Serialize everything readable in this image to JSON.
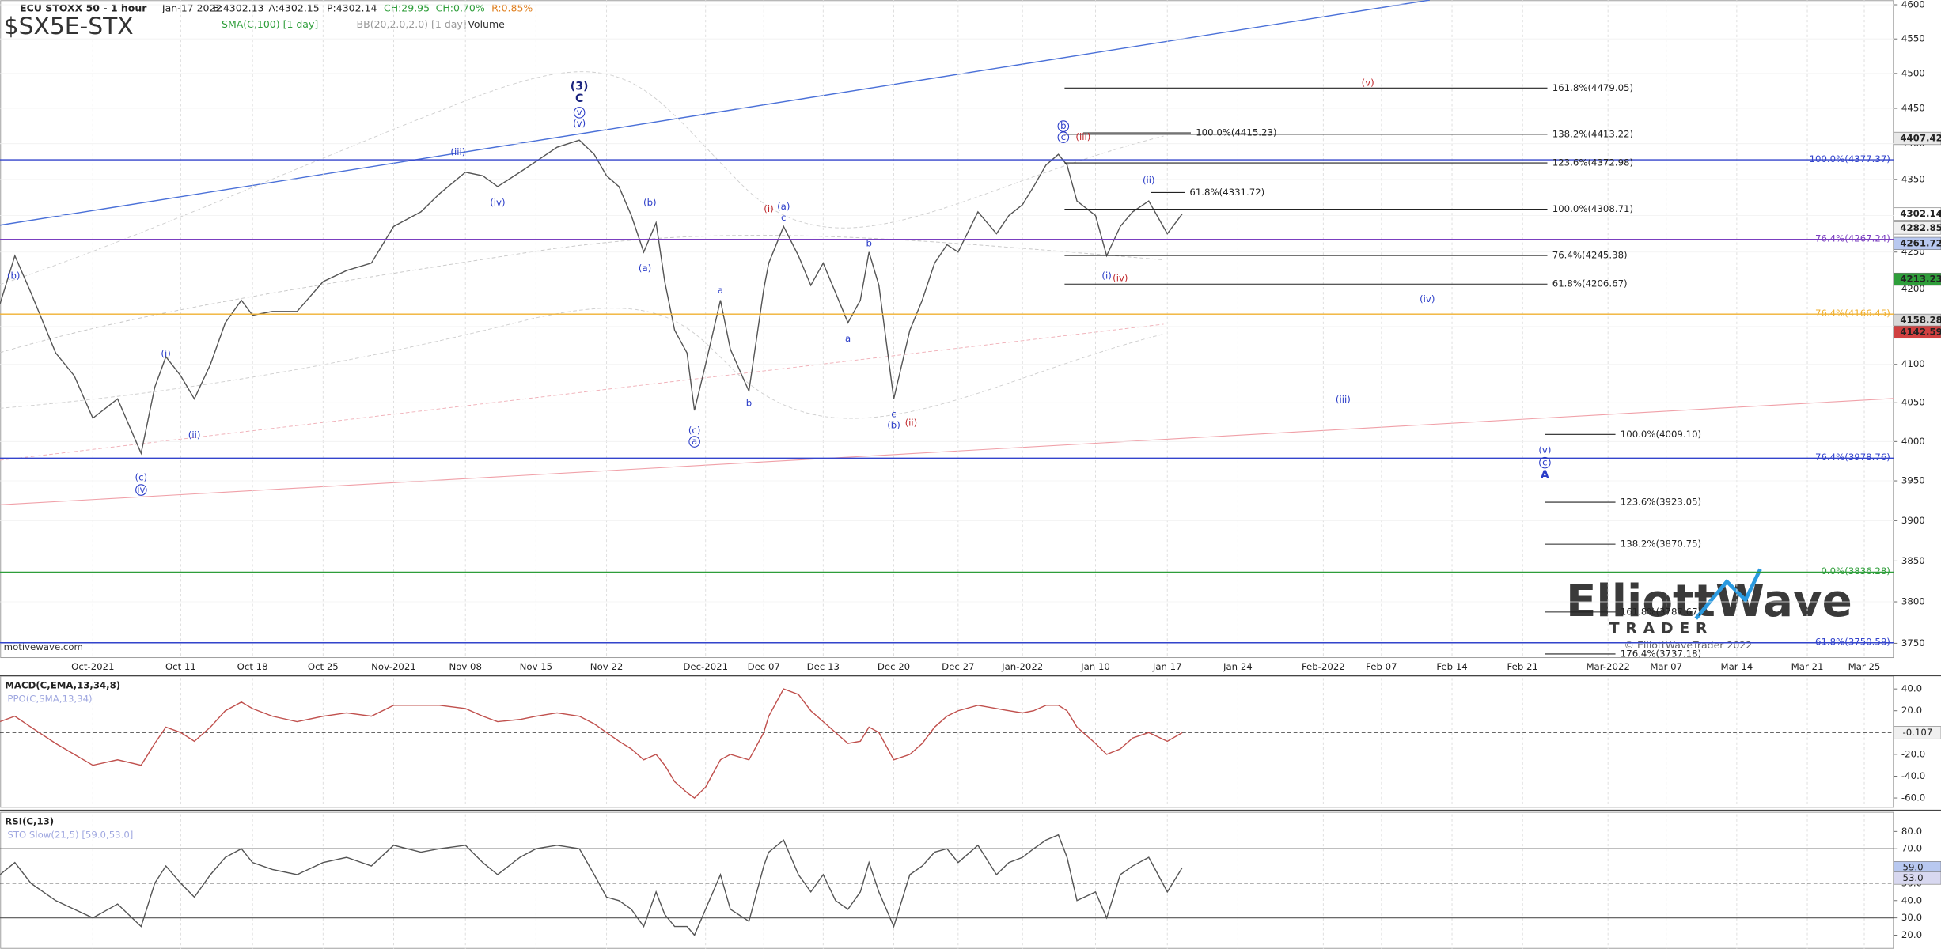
{
  "header": {
    "title": "ECU STOXX 50 - 1 hour",
    "date": "Jan-17 2022",
    "bid": "B:4302.13",
    "ask": "A:4302.15",
    "price": "P:4302.14",
    "change": "CH:29.95",
    "change_pct": "CH:0.70%",
    "range": "R:0.85%",
    "symbol": "$SX5E-STX",
    "studies": [
      "SMA(C,100) [1 day]",
      "BB(20,2.0,2.0) [1 day]",
      "Volume"
    ]
  },
  "footer": {
    "site": "motivewave.com"
  },
  "logo": {
    "name": "ElliottWave",
    "tagline": "TRADER",
    "copyright": "© ElliottWaveTrader 2022"
  },
  "chart_data": [
    {
      "type": "line",
      "log_scale": true,
      "grid": true,
      "color": "#555555",
      "categories": [
        null,
        null,
        null,
        null,
        null,
        "Oct-2021",
        null,
        null,
        null,
        null,
        "Oct 11",
        null,
        null,
        null,
        null,
        "Oct 18",
        null,
        null,
        "Oct 25",
        null,
        null,
        "Nov-2021",
        null,
        null,
        "Nov 08",
        null,
        null,
        null,
        "Nov 15",
        null,
        null,
        null,
        "Nov 22",
        null,
        null,
        null,
        null,
        null,
        null,
        null,
        null,
        "Dec-2021",
        null,
        null,
        null,
        "Dec 07",
        null,
        null,
        null,
        null,
        "Dec 13",
        null,
        null,
        null,
        null,
        null,
        "Dec 20",
        null,
        null,
        null,
        null,
        "Dec 27",
        null,
        null,
        null,
        "Jan-2022",
        null,
        null,
        null,
        null,
        null,
        "Jan 10",
        null,
        null,
        null,
        null,
        "Jan 17",
        null,
        "Jan 24",
        "Feb-2022",
        "Feb 07",
        "Feb 14",
        "Feb 21",
        "Mar-2022",
        "Mar 07",
        "Mar 14",
        "Mar 21",
        "Mar 25"
      ],
      "values": [
        4180,
        4245,
        4195,
        4115,
        4085,
        4030,
        4055,
        3985,
        4070,
        4110,
        4085,
        4055,
        4100,
        4155,
        4185,
        4165,
        4170,
        4170,
        4210,
        4225,
        4235,
        4285,
        4305,
        4330,
        4360,
        4355,
        4340,
        4360,
        4375,
        4395,
        4405,
        4385,
        4355,
        4340,
        4300,
        4250,
        4290,
        4210,
        4145,
        4115,
        4040,
        4100,
        4185,
        4120,
        4065,
        4200,
        4235,
        4285,
        4245,
        4205,
        4235,
        4195,
        4155,
        4185,
        4250,
        4205,
        4055,
        4145,
        4185,
        4235,
        4260,
        4250,
        4305,
        4275,
        4300,
        4315,
        4340,
        4370,
        4385,
        4370,
        4320,
        4300,
        4245,
        4285,
        4305,
        4320,
        4275,
        4302.14,
        null,
        null,
        null,
        null,
        null,
        null,
        null,
        null,
        null,
        null
      ],
      "ylim": [
        3735,
        4607
      ],
      "yticks": [
        3750,
        3800,
        3850,
        3900,
        3950,
        4000,
        4050,
        4100,
        4150,
        4200,
        4250,
        4300,
        4350,
        4400,
        4450,
        4500,
        4550,
        4600
      ],
      "price_markers": [
        {
          "value": 4407.42,
          "color": "#e8e8e8"
        },
        {
          "value": 4302.14,
          "color": "#ffffff"
        },
        {
          "value": 4282.85,
          "color": "#f0f0f0"
        },
        {
          "value": 4261.72,
          "color": "#b8c8f0"
        },
        {
          "value": 4213.23,
          "color": "#2e9e3a"
        },
        {
          "value": 4158.28,
          "color": "#d8d8d8"
        },
        {
          "value": 4142.59,
          "color": "#d04040"
        }
      ],
      "levels": [
        {
          "value": 4377.37,
          "label": "100.0%(4377.37)",
          "color": "#3344cc"
        },
        {
          "value": 4267.24,
          "label": "76.4%(4267.24)",
          "color": "#7b3fc0"
        },
        {
          "value": 4166.45,
          "label": "76.4%(4166.45)",
          "color": "#f0b030"
        },
        {
          "value": 3978.76,
          "label": "76.4%(3978.76)",
          "color": "#3344cc"
        },
        {
          "value": 3836.28,
          "label": "0.0%(3836.28)",
          "color": "#2e9e3a"
        },
        {
          "value": 3750.58,
          "label": "61.8%(3750.58)",
          "color": "#3344cc"
        }
      ],
      "fib_levels": [
        {
          "value": 4479.05,
          "label": "161.8%(4479.05)"
        },
        {
          "value": 4413.22,
          "label": "138.2%(4413.22)"
        },
        {
          "value": 4372.98,
          "label": "123.6%(4372.98)"
        },
        {
          "value": 4308.71,
          "label": "100.0%(4308.71)"
        },
        {
          "value": 4245.38,
          "label": "76.4%(4245.38)"
        },
        {
          "value": 4206.67,
          "label": "61.8%(4206.67)"
        },
        {
          "value": 4415.23,
          "label": "100.0%(4415.23)"
        },
        {
          "value": 4331.72,
          "label": "61.8%(4331.72)"
        },
        {
          "value": 4009.1,
          "label": "100.0%(4009.10)"
        },
        {
          "value": 3923.05,
          "label": "123.6%(3923.05)"
        },
        {
          "value": 3870.75,
          "label": "138.2%(3870.75)"
        },
        {
          "value": 3787.67,
          "label": "161.8%(3787.67)"
        },
        {
          "value": 3737.18,
          "label": "176.4%(3737.18)"
        }
      ],
      "wave_labels": [
        "(b)",
        "(i)",
        "(ii)",
        "(c)",
        "iv",
        "(iii)",
        "(iv)",
        "(3)",
        "C",
        "v",
        "(v)",
        "(b)",
        "(a)",
        "a",
        "b",
        "(c)",
        "a",
        "(i)",
        "(a)",
        "c",
        "a",
        "b",
        "c",
        "(b)",
        "(ii)",
        "b",
        "c",
        "(iii)",
        "(i)",
        "(iv)",
        "(ii)",
        "(v)",
        "(iv)",
        "(iii)",
        "(v)",
        "c",
        "A"
      ]
    },
    {
      "type": "line",
      "title": "MACD(C,EMA,13,34,8)",
      "subtitle": "PPO(C,SMA,13,34)",
      "color": "#c0504d",
      "values": [
        10,
        15,
        5,
        -10,
        -20,
        -30,
        -25,
        -30,
        -10,
        5,
        0,
        -8,
        5,
        20,
        28,
        22,
        15,
        10,
        15,
        18,
        15,
        25,
        25,
        25,
        22,
        15,
        10,
        12,
        15,
        18,
        15,
        8,
        0,
        -8,
        -15,
        -25,
        -20,
        -30,
        -45,
        -55,
        -60,
        -50,
        -25,
        -20,
        -25,
        0,
        15,
        40,
        35,
        20,
        10,
        0,
        -10,
        -8,
        5,
        0,
        -25,
        -20,
        -10,
        5,
        15,
        20,
        25,
        22,
        20,
        18,
        20,
        25,
        25,
        20,
        5,
        -10,
        -20,
        -15,
        -5,
        0,
        -8,
        -0.107,
        null,
        null,
        null,
        null,
        null,
        null,
        null,
        null,
        null,
        null
      ],
      "ylim": [
        -68,
        50
      ],
      "midline": 0,
      "yticks": [
        {
          "value": 40,
          "label": "40.0"
        },
        {
          "value": 20,
          "label": "20.0"
        },
        {
          "value": 0,
          "label": "0.0"
        },
        {
          "value": -20,
          "label": "-20.0"
        },
        {
          "value": -40,
          "label": "-40.0"
        },
        {
          "value": -60,
          "label": "-60.0"
        }
      ]
    },
    {
      "type": "line",
      "title": "RSI(C,13)",
      "subtitle": "STO Slow(21,5) [59.0,53.0]",
      "color": "#555555",
      "values": [
        55,
        62,
        50,
        40,
        35,
        30,
        38,
        25,
        50,
        60,
        50,
        42,
        55,
        65,
        70,
        62,
        58,
        55,
        62,
        65,
        60,
        72,
        68,
        70,
        72,
        62,
        55,
        65,
        70,
        72,
        70,
        55,
        42,
        40,
        35,
        25,
        45,
        32,
        25,
        25,
        20,
        35,
        55,
        35,
        28,
        60,
        68,
        75,
        55,
        45,
        55,
        40,
        35,
        45,
        62,
        45,
        25,
        55,
        60,
        68,
        70,
        62,
        72,
        55,
        62,
        65,
        70,
        75,
        78,
        65,
        40,
        45,
        30,
        55,
        60,
        65,
        45,
        59,
        null,
        null,
        null,
        null,
        null,
        null,
        null,
        null,
        null,
        null
      ],
      "ylim": [
        12,
        90
      ],
      "bands": [
        70,
        30
      ],
      "midline": 50,
      "yticks": [
        {
          "value": 80,
          "label": "80.0"
        },
        {
          "value": 70,
          "label": "70.0"
        },
        {
          "value": 60,
          "label": "60.0"
        },
        {
          "value": 50,
          "label": "50.0"
        },
        {
          "value": 40,
          "label": "40.0"
        },
        {
          "value": 30,
          "label": "30.0"
        },
        {
          "value": 20,
          "label": "20.0"
        }
      ],
      "markers": [
        {
          "value": 59,
          "label": "59.0",
          "color": "#b8c8f0"
        },
        {
          "value": 53,
          "label": "53.0",
          "color": "#d8d8f0"
        }
      ]
    }
  ]
}
